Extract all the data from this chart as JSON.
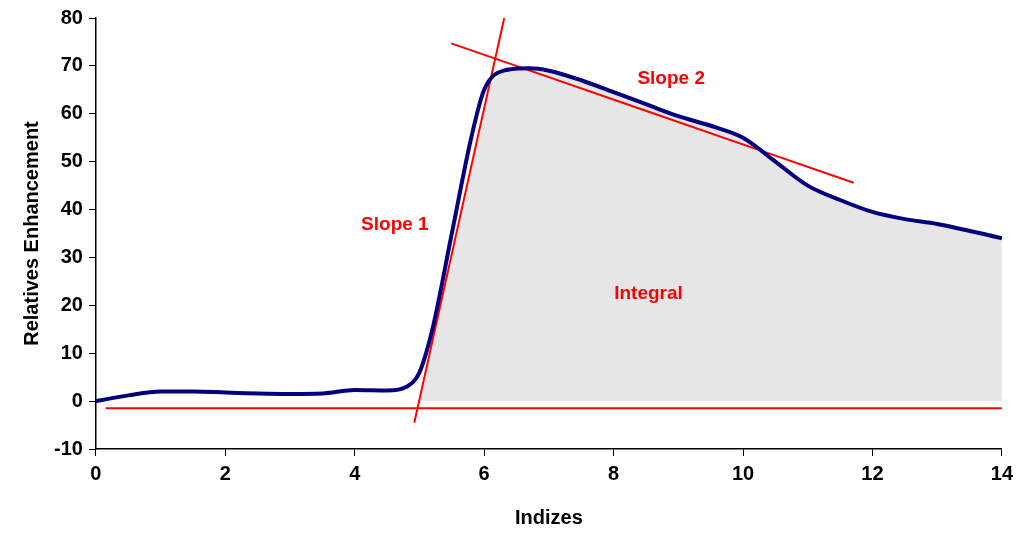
{
  "chart_data": {
    "type": "line",
    "xlabel": "Indizes",
    "ylabel": "Relatives Enhancement",
    "xlim": [
      0,
      14
    ],
    "xticks": [
      0,
      2,
      4,
      6,
      8,
      10,
      12,
      14
    ],
    "ylim": [
      -10,
      80
    ],
    "yticks": [
      -10,
      0,
      10,
      20,
      30,
      40,
      50,
      60,
      70,
      80
    ],
    "grid": false,
    "legend": false,
    "marker": "none",
    "series": [
      {
        "type": "line",
        "color": "#000080",
        "x": [
          0,
          0.5,
          1,
          1.5,
          2,
          2.5,
          3,
          3.5,
          4,
          4.5,
          4.8,
          5,
          5.2,
          5.5,
          5.8,
          6,
          6.3,
          6.7,
          7,
          7.5,
          8,
          8.5,
          9,
          9.5,
          10,
          10.5,
          11,
          11.5,
          12,
          12.5,
          13,
          14
        ],
        "values": [
          0,
          1.2,
          2,
          2,
          1.8,
          1.6,
          1.5,
          1.6,
          2.3,
          2.2,
          3,
          6,
          15,
          35,
          55,
          65,
          69,
          69.5,
          69,
          67,
          64.5,
          62,
          59.5,
          57.5,
          55,
          50,
          45,
          42,
          39.5,
          38,
          37,
          34
        ]
      },
      {
        "type": "line",
        "color": "#ff0000",
        "x": [
          0.15,
          14
        ],
        "values": [
          -1.5,
          -1.5
        ]
      },
      {
        "type": "line",
        "color": "#ff0000",
        "x": [
          4.92,
          6.31
        ],
        "values": [
          -4.5,
          80
        ]
      },
      {
        "type": "line",
        "color": "#ff0000",
        "x": [
          5.49,
          11.71
        ],
        "values": [
          74.7,
          45.6
        ]
      },
      {
        "type": "area",
        "color": "#e6e6e6",
        "x": [
          5.02,
          6.1,
          6.3,
          6.7,
          7,
          7.5,
          8,
          8.5,
          9,
          9.5,
          10,
          10.5,
          11,
          11.5,
          12,
          12.5,
          13,
          14
        ],
        "values": [
          0,
          66,
          69,
          69.5,
          69,
          67,
          64.5,
          62,
          59.5,
          57.5,
          55,
          50,
          45,
          42,
          39.5,
          38,
          37,
          34
        ]
      }
    ],
    "annotations": [
      "Slope 1",
      "Slope 2",
      "Integral"
    ]
  }
}
